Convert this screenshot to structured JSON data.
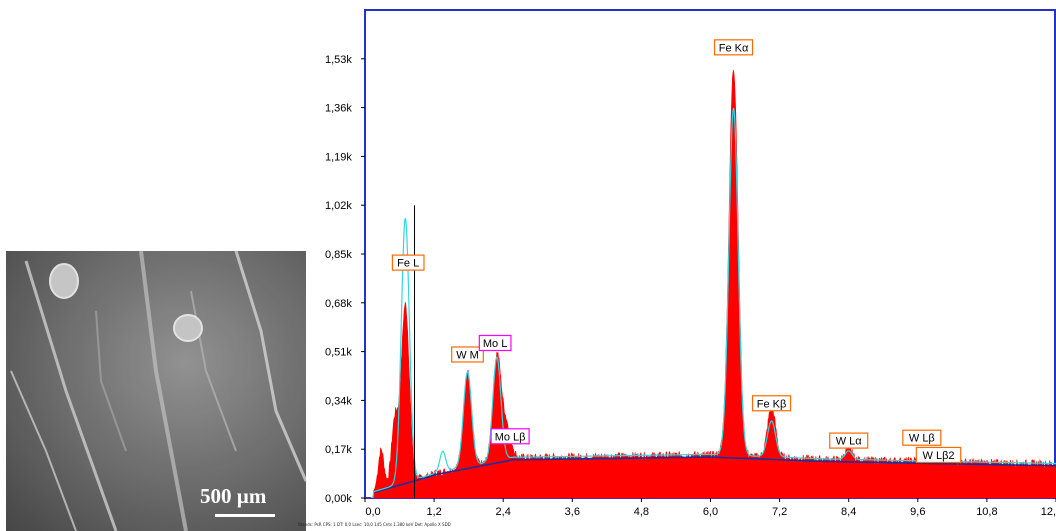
{
  "sem_image": {
    "scale_label": "500 µm"
  },
  "chart_data": {
    "type": "line",
    "title": "",
    "xlabel": "",
    "ylabel": "",
    "xlim": [
      0.0,
      12.0
    ],
    "ylim": [
      0,
      1700
    ],
    "x_ticks": [
      "0,0",
      "1,2",
      "2,4",
      "3,6",
      "4,8",
      "6,0",
      "7,2",
      "8,4",
      "9,6",
      "10,8",
      "12,"
    ],
    "y_ticks": [
      {
        "label": "0,00k",
        "value": 0
      },
      {
        "label": "0,17k",
        "value": 170
      },
      {
        "label": "0,34k",
        "value": 340
      },
      {
        "label": "0,51k",
        "value": 510
      },
      {
        "label": "0,68k",
        "value": 680
      },
      {
        "label": "0,85k",
        "value": 850
      },
      {
        "label": "1,02k",
        "value": 1020
      },
      {
        "label": "1,19k",
        "value": 1190
      },
      {
        "label": "1,36k",
        "value": 1360
      },
      {
        "label": "1,53k",
        "value": 1530
      }
    ],
    "grid": false,
    "colors": {
      "spectrum": "#ff0000",
      "fit": "#33d6e0",
      "background": "#1a2fa0",
      "frame": "#2233cc"
    },
    "peaks": [
      {
        "name": "Fe L",
        "x": 0.7,
        "y": 760,
        "border": "#ff6a00",
        "label_x": 0.75,
        "label_y": 820
      },
      {
        "name": "W  M",
        "x": 1.78,
        "y": 460,
        "border": "#ff6a00",
        "label_x": 1.78,
        "label_y": 500
      },
      {
        "name": "Mo L",
        "x": 2.29,
        "y": 500,
        "border": "#ff00ff",
        "label_x": 2.26,
        "label_y": 540
      },
      {
        "name": "Mo Lβ",
        "x": 2.4,
        "y": 170,
        "border": "#ff00ff",
        "label_x": 2.52,
        "label_y": 215
      },
      {
        "name": "Fe Kα",
        "x": 6.4,
        "y": 1470,
        "border": "#ff6a00",
        "label_x": 6.4,
        "label_y": 1570
      },
      {
        "name": "Fe Kβ",
        "x": 7.06,
        "y": 290,
        "border": "#ff6a00",
        "label_x": 7.06,
        "label_y": 330
      },
      {
        "name": "W  Lα",
        "x": 8.4,
        "y": 50,
        "border": "#ff6a00",
        "label_x": 8.4,
        "label_y": 200
      },
      {
        "name": "W  Lβ",
        "x": 9.67,
        "y": 40,
        "border": "#ff6a00",
        "label_x": 9.67,
        "label_y": 210
      },
      {
        "name": "W  Lβ2",
        "x": 9.96,
        "y": 40,
        "border": "#ff6a00",
        "label_x": 9.96,
        "label_y": 150
      }
    ],
    "spectrum_peaks": [
      {
        "x": 0.28,
        "h": 140,
        "w": 0.05
      },
      {
        "x": 0.52,
        "h": 230,
        "w": 0.06
      },
      {
        "x": 0.7,
        "h": 620,
        "w": 0.07
      },
      {
        "x": 1.78,
        "h": 330,
        "w": 0.07
      },
      {
        "x": 2.29,
        "h": 360,
        "w": 0.07
      },
      {
        "x": 2.45,
        "h": 120,
        "w": 0.08
      },
      {
        "x": 6.4,
        "h": 1350,
        "w": 0.08
      },
      {
        "x": 7.06,
        "h": 175,
        "w": 0.07
      },
      {
        "x": 8.4,
        "h": 40,
        "w": 0.06
      },
      {
        "x": 9.67,
        "h": 30,
        "w": 0.06
      }
    ],
    "fit_peaks": [
      {
        "x": 0.7,
        "h": 920,
        "w": 0.07
      },
      {
        "x": 1.35,
        "h": 70,
        "w": 0.05
      },
      {
        "x": 1.78,
        "h": 330,
        "w": 0.07
      },
      {
        "x": 2.29,
        "h": 360,
        "w": 0.07
      },
      {
        "x": 6.4,
        "h": 1210,
        "w": 0.08
      },
      {
        "x": 7.06,
        "h": 125,
        "w": 0.07
      },
      {
        "x": 8.4,
        "h": 30,
        "w": 0.06
      }
    ],
    "cursor_x": [
      0.86,
      0.86
    ]
  },
  "status_bar": {
    "text": "Stands: PsR    CPS: 1     DT: 0,0     Lsec: 10,0     145 Cnts     1.380 keV           Det: Apollo X SDD"
  }
}
